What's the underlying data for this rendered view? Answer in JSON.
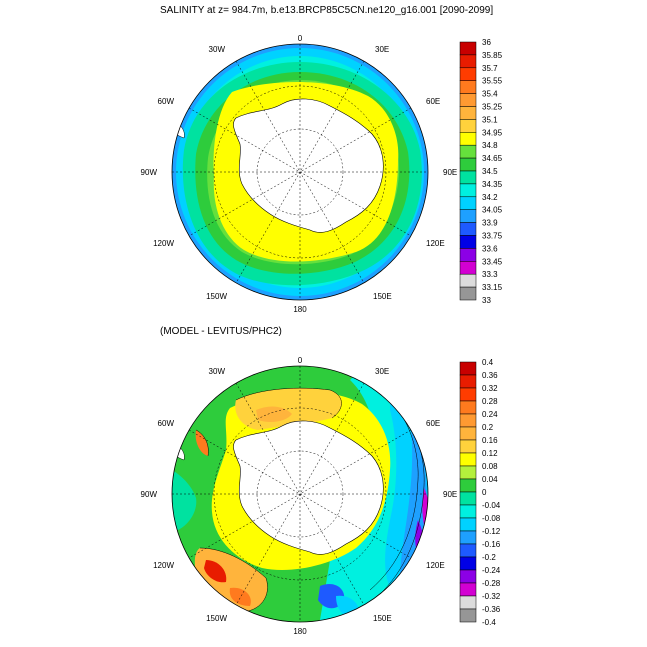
{
  "panel1": {
    "title": "SALINITY at z= 984.7m, b.e13.BRCP85C5CN.ne120_g16.001 [2090-2099]",
    "colorbar": {
      "labels": [
        "36",
        "35.85",
        "35.7",
        "35.55",
        "35.4",
        "35.25",
        "35.1",
        "34.95",
        "34.8",
        "34.65",
        "34.5",
        "34.35",
        "34.2",
        "34.05",
        "33.9",
        "33.75",
        "33.6",
        "33.45",
        "33.3",
        "33.15",
        "33"
      ],
      "colors": [
        "#c80000",
        "#e81c00",
        "#ff3c00",
        "#ff7a1e",
        "#ff9a32",
        "#ffb43c",
        "#ffd23c",
        "#ffff00",
        "#66e03c",
        "#2ecc3c",
        "#00e2a0",
        "#00f0e0",
        "#00d2ff",
        "#1ea0ff",
        "#1e5aff",
        "#0000e6",
        "#8c00e6",
        "#d200d2",
        "#dcdcdc",
        "#969696"
      ]
    },
    "longitude_labels": {
      "top": "0",
      "nne": "30E",
      "nnw": "30W",
      "ene": "60E",
      "wnw": "60W",
      "east": "90E",
      "west": "90W",
      "ese": "120E",
      "wsw": "120W",
      "sse": "150E",
      "ssw": "150W",
      "bottom": "180"
    }
  },
  "panel2": {
    "title": "(MODEL - LEVITUS/PHC2)",
    "colorbar": {
      "labels": [
        "0.4",
        "0.36",
        "0.32",
        "0.28",
        "0.24",
        "0.2",
        "0.16",
        "0.12",
        "0.08",
        "0.04",
        "0",
        "-0.04",
        "-0.08",
        "-0.12",
        "-0.16",
        "-0.2",
        "-0.24",
        "-0.28",
        "-0.32",
        "-0.36",
        "-0.4"
      ],
      "colors": [
        "#c80000",
        "#e81c00",
        "#ff3c00",
        "#ff7a1e",
        "#ff9a32",
        "#ffb43c",
        "#ffd23c",
        "#ffff00",
        "#b4f03c",
        "#2ecc3c",
        "#00e2a0",
        "#00f0e0",
        "#00d2ff",
        "#1ea0ff",
        "#1e5aff",
        "#0000e6",
        "#8c00e6",
        "#d200d2",
        "#dcdcdc",
        "#969696"
      ]
    },
    "longitude_labels": {
      "top": "0",
      "nne": "30E",
      "nnw": "30W",
      "ene": "60E",
      "wnw": "60W",
      "east": "90E",
      "west": "90W",
      "ese": "120E",
      "wsw": "120W",
      "sse": "150E",
      "ssw": "150W",
      "bottom": "180"
    }
  }
}
